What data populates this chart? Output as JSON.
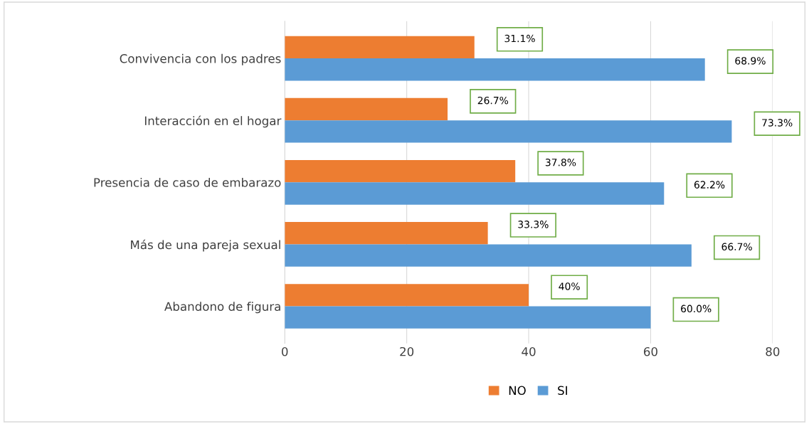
{
  "chart_data": {
    "type": "bar",
    "orientation": "horizontal",
    "categories": [
      "Convivencia con los padres",
      "Interacción en el hogar",
      "Presencia de caso de embarazo",
      "Más de una pareja sexual",
      "Abandono de figura"
    ],
    "series": [
      {
        "name": "NO",
        "color": "#ed7d31",
        "values": [
          31.1,
          26.7,
          37.8,
          33.3,
          40
        ],
        "value_labels": [
          "31.1%",
          "26.7%",
          "37.8%",
          "33.3%",
          "40%"
        ]
      },
      {
        "name": "SI",
        "color": "#5b9bd5",
        "values": [
          68.9,
          73.3,
          62.2,
          66.7,
          60.0
        ],
        "value_labels": [
          "68.9%",
          "73.3%",
          "62.2%",
          "66.7%",
          "60.0%"
        ]
      }
    ],
    "xlim": [
      0,
      80
    ],
    "xticks": [
      0,
      20,
      40,
      60,
      80
    ],
    "grid": "x",
    "legend": "bottom"
  }
}
